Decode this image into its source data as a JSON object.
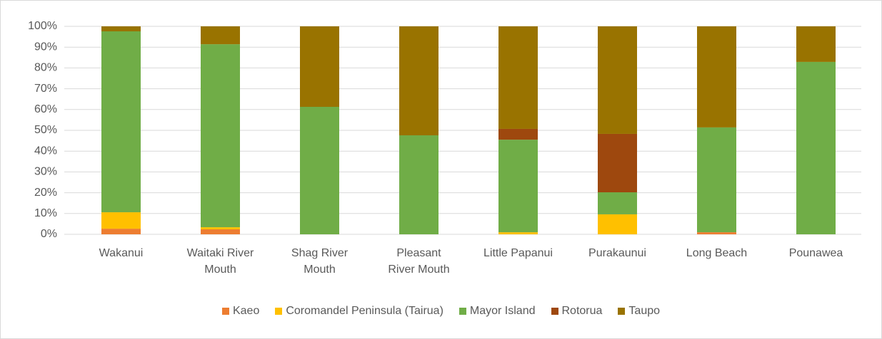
{
  "chart_data": {
    "type": "stacked_bar",
    "categories": [
      "Wakanui",
      "Waitaki River\nMouth",
      "Shag River\nMouth",
      "Pleasant\nRiver Mouth",
      "Little Papanui",
      "Purakaunui",
      "Long Beach",
      "Pounawea"
    ],
    "series": [
      {
        "name": "Kaeo",
        "color": "#ed7d31",
        "values": [
          2.7,
          2.4,
          0,
          0,
          0,
          0,
          1,
          0
        ]
      },
      {
        "name": "Coromandel Peninsula (Tairua)",
        "color": "#ffc000",
        "values": [
          7.9,
          1,
          0,
          0,
          1,
          9.6,
          0,
          0
        ]
      },
      {
        "name": "Mayor Island",
        "color": "#70ad47",
        "values": [
          87,
          88,
          61.3,
          47.6,
          44.5,
          10.6,
          50.4,
          82.9
        ]
      },
      {
        "name": "Rotorua",
        "color": "#9e480e",
        "values": [
          0,
          0,
          0,
          0,
          5.2,
          28.1,
          0,
          0
        ]
      },
      {
        "name": "Taupo",
        "color": "#997300",
        "values": [
          2.4,
          8.6,
          38.7,
          52.4,
          49.3,
          51.7,
          48.6,
          17.1
        ]
      }
    ],
    "ylim": [
      0,
      100
    ],
    "yticks": [
      {
        "value": 0,
        "label": "0%"
      },
      {
        "value": 10,
        "label": "10%"
      },
      {
        "value": 20,
        "label": "20%"
      },
      {
        "value": 30,
        "label": "30%"
      },
      {
        "value": 40,
        "label": "40%"
      },
      {
        "value": 50,
        "label": "50%"
      },
      {
        "value": 60,
        "label": "60%"
      },
      {
        "value": 70,
        "label": "70%"
      },
      {
        "value": 80,
        "label": "80%"
      },
      {
        "value": 90,
        "label": "90%"
      },
      {
        "value": 100,
        "label": "100%"
      }
    ],
    "grid": true,
    "legend": "bottom"
  }
}
